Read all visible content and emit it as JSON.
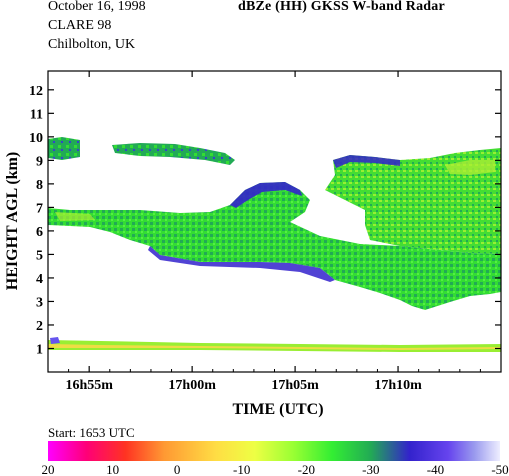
{
  "header": {
    "date": "October 16, 1998",
    "campaign": "CLARE 98",
    "site": "Chilbolton, UK",
    "title": "dBZe (HH)   GKSS  W-band Radar"
  },
  "start_text": "Start: 1653 UTC",
  "chart_data": {
    "type": "heatmap",
    "title": "dBZe (HH)   GKSS  W-band Radar",
    "xlabel": "TIME (UTC)",
    "ylabel": "HEIGHT AGL (km)",
    "xlim_minutes_after_1653": [
      0,
      22
    ],
    "ylim_km": [
      0,
      12.8
    ],
    "x_ticks": [
      {
        "minute": 2,
        "label": "16h55m"
      },
      {
        "minute": 7,
        "label": "17h00m"
      },
      {
        "minute": 12,
        "label": "17h05m"
      },
      {
        "minute": 17,
        "label": "17h10m"
      }
    ],
    "y_ticks": [
      1,
      2,
      3,
      4,
      5,
      6,
      7,
      8,
      9,
      10,
      11,
      12
    ],
    "colorbar": {
      "labels": [
        "20",
        "10",
        "0",
        "-10",
        "-20",
        "-30",
        "-40",
        "-50"
      ],
      "range_dBZ": [
        20,
        -50
      ],
      "stops": [
        {
          "value": 20,
          "color": "#ff00ff"
        },
        {
          "value": 14,
          "color": "#ff0077"
        },
        {
          "value": 8,
          "color": "#ff3322"
        },
        {
          "value": 2,
          "color": "#ff9933"
        },
        {
          "value": -6,
          "color": "#ffdd44"
        },
        {
          "value": -12,
          "color": "#eeff44"
        },
        {
          "value": -18,
          "color": "#99ff33"
        },
        {
          "value": -24,
          "color": "#33ee33"
        },
        {
          "value": -30,
          "color": "#22aa55"
        },
        {
          "value": -36,
          "color": "#3322cc"
        },
        {
          "value": -42,
          "color": "#6644ee"
        },
        {
          "value": -46,
          "color": "#9999ee"
        },
        {
          "value": -50,
          "color": "#eeeeff"
        }
      ]
    },
    "echo_layers": [
      {
        "name": "",
        "approx_height_km": [
          9.0,
          9.7
        ],
        "minutes": [
          0,
          1.5
        ],
        "typical_dBZ": -25
      },
      {
        "name": "",
        "approx_height_km": [
          8.8,
          9.6
        ],
        "minutes": [
          3.1,
          9.2
        ],
        "typical_dBZ": -27
      },
      {
        "name": "",
        "approx_height_km": [
          4.7,
          7.1
        ],
        "minutes": [
          0,
          22
        ],
        "typical_dBZ": -28
      },
      {
        "name": "",
        "approx_height_km": [
          3.3,
          9.3
        ],
        "minutes": [
          14,
          22
        ],
        "typical_dBZ": -30
      },
      {
        "name": "",
        "approx_height_km": [
          0.9,
          1.4
        ],
        "minutes": [
          0,
          22
        ],
        "typical_dBZ": -12
      }
    ]
  }
}
